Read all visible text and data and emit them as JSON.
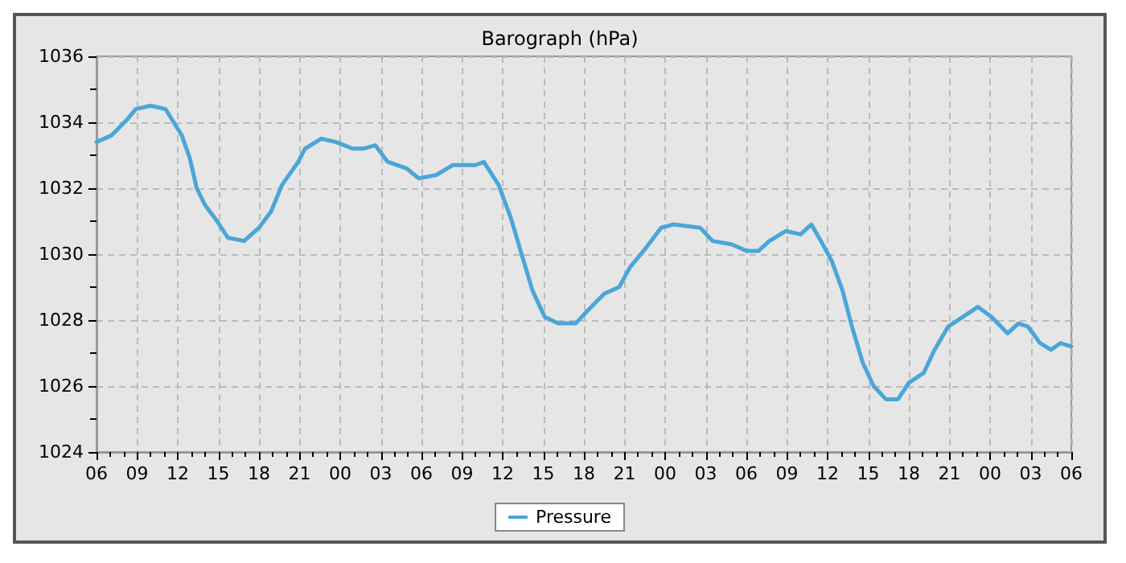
{
  "chart_data": {
    "type": "line",
    "title": "Barograph (hPa)",
    "x": [
      6.0,
      7.1,
      8.3,
      8.9,
      10.0,
      11.1,
      11.7,
      12.3,
      12.9,
      13.4,
      14.0,
      14.9,
      15.7,
      16.9,
      18.0,
      18.9,
      19.7,
      20.9,
      21.4,
      22.6,
      23.7,
      24.9,
      25.7,
      26.6,
      27.5,
      28.9,
      29.8,
      31.1,
      32.3,
      34.0,
      34.6,
      35.7,
      36.6,
      37.4,
      38.2,
      39.1,
      40.1,
      41.4,
      42.3,
      43.5,
      44.6,
      45.4,
      46.6,
      47.7,
      48.6,
      50.6,
      51.5,
      52.9,
      54.0,
      54.9,
      55.7,
      56.9,
      58.0,
      58.8,
      59.5,
      60.3,
      61.1,
      61.8,
      62.6,
      63.4,
      64.3,
      65.2,
      66.0,
      67.1,
      67.9,
      68.9,
      70.0,
      71.1,
      72.1,
      73.3,
      74.1,
      74.8,
      75.7,
      76.5,
      77.2,
      78.0
    ],
    "series": [
      {
        "name": "Pressure",
        "color": "#4ba6d8",
        "values": [
          1033.4,
          1033.6,
          1034.1,
          1034.4,
          1034.5,
          1034.4,
          1034.0,
          1033.6,
          1032.9,
          1032.0,
          1031.5,
          1031.0,
          1030.5,
          1030.4,
          1030.8,
          1031.3,
          1032.1,
          1032.8,
          1033.2,
          1033.5,
          1033.4,
          1033.2,
          1033.2,
          1033.3,
          1032.8,
          1032.6,
          1032.3,
          1032.4,
          1032.7,
          1032.7,
          1032.8,
          1032.1,
          1031.1,
          1030.0,
          1028.9,
          1028.1,
          1027.9,
          1027.9,
          1028.3,
          1028.8,
          1029.0,
          1029.6,
          1030.2,
          1030.8,
          1030.9,
          1030.8,
          1030.4,
          1030.3,
          1030.1,
          1030.1,
          1030.4,
          1030.7,
          1030.6,
          1030.9,
          1030.4,
          1029.8,
          1028.9,
          1027.8,
          1026.7,
          1026.0,
          1025.6,
          1025.6,
          1026.1,
          1026.4,
          1027.1,
          1027.8,
          1028.1,
          1028.4,
          1028.1,
          1027.6,
          1027.9,
          1027.8,
          1027.3,
          1027.1,
          1027.3,
          1027.2
        ]
      }
    ],
    "xlim": [
      6,
      78
    ],
    "xticks": [
      {
        "value": 6,
        "label": "06"
      },
      {
        "value": 9,
        "label": "09"
      },
      {
        "value": 12,
        "label": "12"
      },
      {
        "value": 15,
        "label": "15"
      },
      {
        "value": 18,
        "label": "18"
      },
      {
        "value": 21,
        "label": "21"
      },
      {
        "value": 24,
        "label": "00"
      },
      {
        "value": 27,
        "label": "03"
      },
      {
        "value": 30,
        "label": "06"
      },
      {
        "value": 33,
        "label": "09"
      },
      {
        "value": 36,
        "label": "12"
      },
      {
        "value": 39,
        "label": "15"
      },
      {
        "value": 42,
        "label": "18"
      },
      {
        "value": 45,
        "label": "21"
      },
      {
        "value": 48,
        "label": "00"
      },
      {
        "value": 51,
        "label": "03"
      },
      {
        "value": 54,
        "label": "06"
      },
      {
        "value": 57,
        "label": "09"
      },
      {
        "value": 60,
        "label": "12"
      },
      {
        "value": 63,
        "label": "15"
      },
      {
        "value": 66,
        "label": "18"
      },
      {
        "value": 69,
        "label": "21"
      },
      {
        "value": 72,
        "label": "00"
      },
      {
        "value": 75,
        "label": "03"
      },
      {
        "value": 78,
        "label": "06"
      }
    ],
    "ylim": [
      1024,
      1036
    ],
    "yticks": [
      1024,
      1026,
      1028,
      1030,
      1032,
      1034,
      1036
    ],
    "grid": true,
    "legend": "bottom",
    "marker": "none",
    "line_style": "solid"
  }
}
